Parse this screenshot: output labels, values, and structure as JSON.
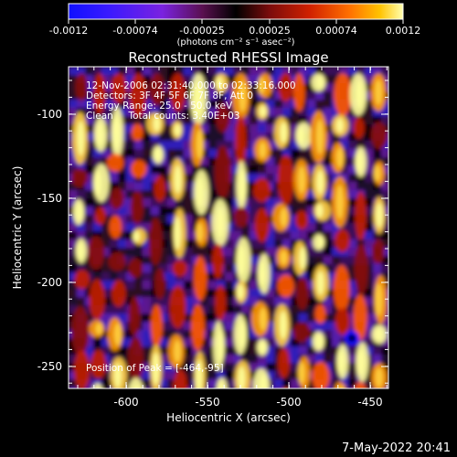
{
  "colorbar": {
    "tick_labels": [
      "-0.0012",
      "-0.00074",
      "-0.00025",
      "0.00025",
      "0.00074",
      "0.0012"
    ],
    "units_label": "(photons cm⁻² s⁻¹ asec⁻²)",
    "range": [
      -0.0012,
      0.0012
    ],
    "colors": [
      "#1b1bff",
      "#5a20ff",
      "#8a25d0",
      "#5a0f40",
      "#000000",
      "#7a0c0c",
      "#d22000",
      "#ff6a00",
      "#ffc000",
      "#ffff9a"
    ]
  },
  "title": "Reconstructed RHESSI Image",
  "annotations": {
    "time_range": "12-Nov-2006 02:31:40.000 to 02:33:16.000",
    "detectors": "Detectors: 3F 4F 5F 6F 7F 8F, Att 0",
    "energy_range": "Energy Range: 25.0 - 50.0 keV",
    "clean": "Clean     Total counts: 3.40E+03",
    "peak": "Position of Peak = [-464,-95]"
  },
  "axes": {
    "xlabel": "Heliocentric X (arcsec)",
    "ylabel": "Heliocentric Y (arcsec)",
    "x_ticks": [
      "-600",
      "-550",
      "-500",
      "-450"
    ],
    "y_ticks": [
      "-100",
      "-150",
      "-200",
      "-250"
    ],
    "xlim": [
      -635,
      -435
    ],
    "ylim": [
      -265,
      -75
    ]
  },
  "timestamp": "7-May-2022 20:41"
}
